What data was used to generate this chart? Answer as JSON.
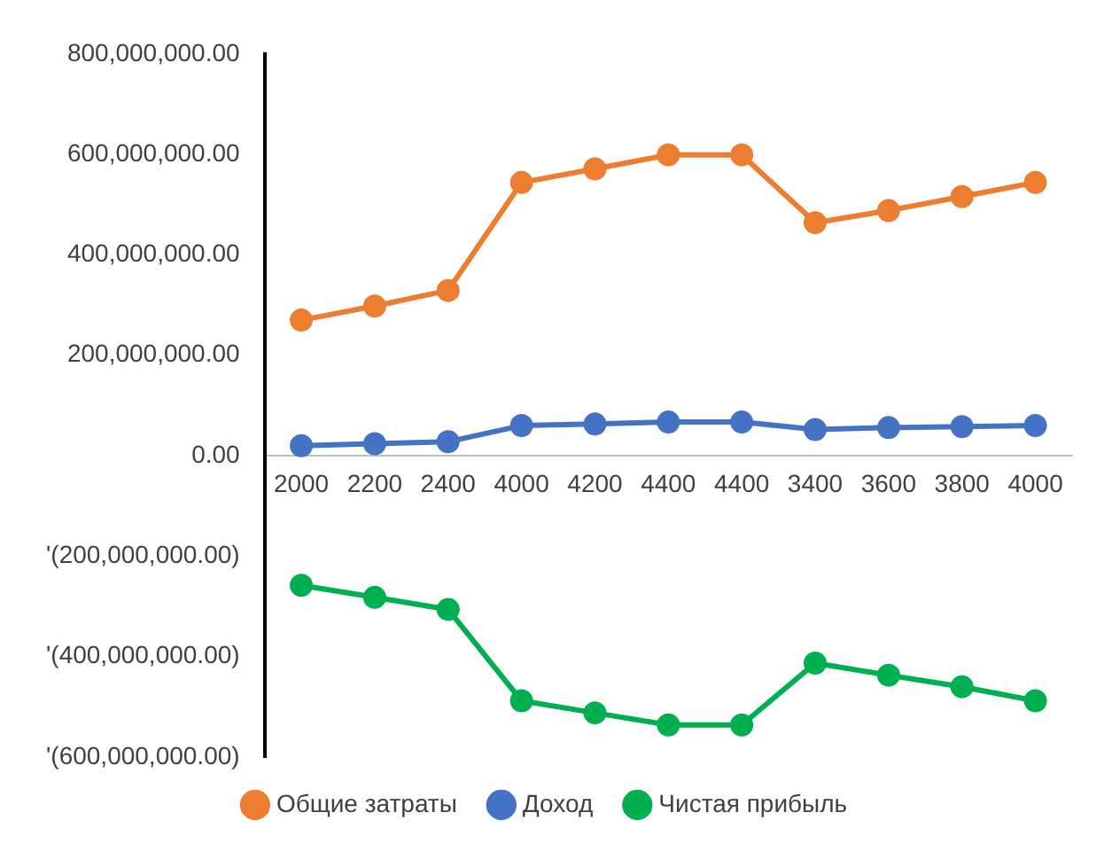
{
  "chart_data": {
    "type": "line",
    "categories": [
      "2000",
      "2200",
      "2400",
      "4000",
      "4200",
      "4400",
      "4400",
      "3400",
      "3600",
      "3800",
      "4000"
    ],
    "series": [
      {
        "name": "Общие затраты",
        "color": "#ed7d31",
        "values": [
          270000000,
          298000000,
          329000000,
          544000000,
          571000000,
          599000000,
          599000000,
          464000000,
          488000000,
          516000000,
          544000000
        ]
      },
      {
        "name": "Доход",
        "color": "#4472c4",
        "values": [
          20000000,
          24000000,
          28000000,
          60000000,
          63000000,
          67000000,
          67000000,
          52000000,
          56000000,
          58000000,
          60000000
        ]
      },
      {
        "name": "Чистая прибыль",
        "color": "#00b050",
        "values": [
          -258000000,
          -282000000,
          -306000000,
          -488000000,
          -512000000,
          -536000000,
          -536000000,
          -413000000,
          -437000000,
          -460000000,
          -488000000
        ]
      }
    ],
    "ylim": [
      -600000000,
      800000000
    ],
    "yticks": [
      {
        "value": -600000000,
        "label": "'(600,000,000.00)"
      },
      {
        "value": -400000000,
        "label": "'(400,000,000.00)"
      },
      {
        "value": -200000000,
        "label": "'(200,000,000.00)"
      },
      {
        "value": 0,
        "label": "0.00"
      },
      {
        "value": 200000000,
        "label": "200,000,000.00"
      },
      {
        "value": 400000000,
        "label": "400,000,000.00"
      },
      {
        "value": 600000000,
        "label": "600,000,000.00"
      },
      {
        "value": 800000000,
        "label": "800,000,000.00"
      }
    ],
    "grid": false,
    "legend": "bottom",
    "marker": "circle",
    "line_style": "solid"
  }
}
